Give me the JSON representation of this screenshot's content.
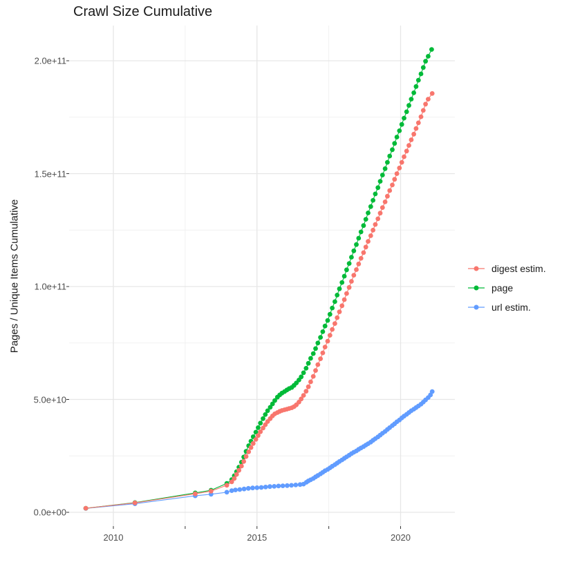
{
  "figure": {
    "background": "#ffffff"
  },
  "chart_data": {
    "type": "line",
    "title": "Crawl Size Cumulative",
    "xlabel": "",
    "ylabel": "Pages / Unique Items Cumulative",
    "value_units": "pages, stored below in billions (1e9); axis shows scientific notation",
    "x_axis": {
      "range": [
        2008.5,
        2021.9
      ],
      "major_ticks": [
        {
          "label": "2010",
          "year": 2010
        },
        {
          "label": "2015",
          "year": 2015
        },
        {
          "label": "2020",
          "year": 2020
        }
      ],
      "minor_years": [
        2012.5,
        2017.5
      ]
    },
    "y_axis": {
      "range_billions": [
        -6,
        215
      ],
      "major_ticks": [
        {
          "label": "0.0e+00",
          "value": 0
        },
        {
          "label": "5.0e+10",
          "value": 50
        },
        {
          "label": "1.0e+11",
          "value": 100
        },
        {
          "label": "1.5e+11",
          "value": 150
        },
        {
          "label": "2.0e+11",
          "value": 200
        }
      ],
      "minor_values": [
        25,
        75,
        125,
        175
      ]
    },
    "grid": "major+minor, light gray on white",
    "legend_position": "right",
    "draw_order": [
      "url estim.",
      "page",
      "digest estim."
    ],
    "series": [
      {
        "name": "digest estim.",
        "color": "#F8766D",
        "points": [
          [
            2009.04,
            1.8
          ],
          [
            2010.75,
            4.2
          ],
          [
            2012.85,
            8.2
          ],
          [
            2013.4,
            9.4
          ],
          [
            2013.95,
            12
          ],
          [
            2014.12,
            13.5
          ],
          [
            2014.21,
            15
          ],
          [
            2014.29,
            16.8
          ],
          [
            2014.37,
            18.6
          ],
          [
            2014.46,
            20.5
          ],
          [
            2014.54,
            22.5
          ],
          [
            2014.62,
            24.7
          ],
          [
            2014.71,
            26.8
          ],
          [
            2014.79,
            28.7
          ],
          [
            2014.87,
            30.5
          ],
          [
            2014.96,
            32.3
          ],
          [
            2015.04,
            34
          ],
          [
            2015.12,
            35.7
          ],
          [
            2015.21,
            37.3
          ],
          [
            2015.29,
            38.8
          ],
          [
            2015.37,
            40.2
          ],
          [
            2015.46,
            41.5
          ],
          [
            2015.54,
            42.7
          ],
          [
            2015.62,
            43.6
          ],
          [
            2015.71,
            44.2
          ],
          [
            2015.79,
            44.7
          ],
          [
            2015.87,
            45.1
          ],
          [
            2015.96,
            45.4
          ],
          [
            2016.04,
            45.7
          ],
          [
            2016.12,
            46
          ],
          [
            2016.21,
            46.3
          ],
          [
            2016.29,
            46.8
          ],
          [
            2016.37,
            47.6
          ],
          [
            2016.46,
            48.8
          ],
          [
            2016.54,
            50.2
          ],
          [
            2016.62,
            51.8
          ],
          [
            2016.71,
            53.6
          ],
          [
            2016.79,
            55.6
          ],
          [
            2016.87,
            57.8
          ],
          [
            2016.96,
            60.2
          ],
          [
            2017.04,
            62.8
          ],
          [
            2017.12,
            65.4
          ],
          [
            2017.21,
            68
          ],
          [
            2017.29,
            70.6
          ],
          [
            2017.37,
            73.2
          ],
          [
            2017.46,
            75.8
          ],
          [
            2017.54,
            78.4
          ],
          [
            2017.62,
            81
          ],
          [
            2017.71,
            83.6
          ],
          [
            2017.79,
            86.2
          ],
          [
            2017.87,
            88.8
          ],
          [
            2017.96,
            91.5
          ],
          [
            2018.04,
            94.2
          ],
          [
            2018.12,
            96.9
          ],
          [
            2018.21,
            99.6
          ],
          [
            2018.29,
            102.3
          ],
          [
            2018.37,
            105
          ],
          [
            2018.46,
            107.5
          ],
          [
            2018.54,
            110
          ],
          [
            2018.62,
            112.5
          ],
          [
            2018.71,
            115
          ],
          [
            2018.79,
            117.5
          ],
          [
            2018.87,
            120
          ],
          [
            2018.96,
            122.5
          ],
          [
            2019.04,
            125
          ],
          [
            2019.12,
            127.5
          ],
          [
            2019.21,
            130
          ],
          [
            2019.29,
            132.5
          ],
          [
            2019.37,
            135
          ],
          [
            2019.46,
            137.5
          ],
          [
            2019.54,
            140
          ],
          [
            2019.62,
            142.5
          ],
          [
            2019.71,
            145
          ],
          [
            2019.79,
            147.5
          ],
          [
            2019.87,
            150
          ],
          [
            2019.96,
            152.5
          ],
          [
            2020.04,
            155
          ],
          [
            2020.12,
            157.5
          ],
          [
            2020.21,
            160
          ],
          [
            2020.29,
            162.5
          ],
          [
            2020.37,
            165
          ],
          [
            2020.46,
            167.5
          ],
          [
            2020.54,
            170
          ],
          [
            2020.62,
            172.5
          ],
          [
            2020.71,
            175.2
          ],
          [
            2020.79,
            178
          ],
          [
            2020.87,
            180.8
          ],
          [
            2020.96,
            183
          ],
          [
            2021.1,
            185.5
          ]
        ]
      },
      {
        "name": "page",
        "color": "#00BA38",
        "points": [
          [
            2009.04,
            1.8
          ],
          [
            2010.75,
            4.3
          ],
          [
            2012.85,
            8.6
          ],
          [
            2013.4,
            9.8
          ],
          [
            2013.95,
            12.8
          ],
          [
            2014.12,
            14.5
          ],
          [
            2014.21,
            16.2
          ],
          [
            2014.29,
            18
          ],
          [
            2014.37,
            20
          ],
          [
            2014.46,
            22.2
          ],
          [
            2014.54,
            24.5
          ],
          [
            2014.62,
            27
          ],
          [
            2014.71,
            29.5
          ],
          [
            2014.79,
            31.5
          ],
          [
            2014.87,
            33.5
          ],
          [
            2014.96,
            35.5
          ],
          [
            2015.04,
            37.5
          ],
          [
            2015.12,
            39.5
          ],
          [
            2015.21,
            41.5
          ],
          [
            2015.29,
            43.3
          ],
          [
            2015.37,
            45
          ],
          [
            2015.46,
            46.5
          ],
          [
            2015.54,
            48
          ],
          [
            2015.62,
            49.5
          ],
          [
            2015.71,
            51
          ],
          [
            2015.79,
            52
          ],
          [
            2015.87,
            52.8
          ],
          [
            2015.96,
            53.5
          ],
          [
            2016.04,
            54.2
          ],
          [
            2016.12,
            54.8
          ],
          [
            2016.21,
            55.3
          ],
          [
            2016.29,
            56.2
          ],
          [
            2016.37,
            57.3
          ],
          [
            2016.46,
            58.6
          ],
          [
            2016.54,
            60
          ],
          [
            2016.62,
            61.8
          ],
          [
            2016.71,
            63.8
          ],
          [
            2016.79,
            66
          ],
          [
            2016.87,
            68.2
          ],
          [
            2016.96,
            70.3
          ],
          [
            2017.04,
            72.5
          ],
          [
            2017.12,
            75
          ],
          [
            2017.21,
            77.5
          ],
          [
            2017.29,
            80
          ],
          [
            2017.37,
            82.5
          ],
          [
            2017.46,
            85
          ],
          [
            2017.54,
            87.7
          ],
          [
            2017.62,
            90.5
          ],
          [
            2017.71,
            93.3
          ],
          [
            2017.79,
            96.2
          ],
          [
            2017.87,
            99
          ],
          [
            2017.96,
            101.8
          ],
          [
            2018.04,
            104.6
          ],
          [
            2018.12,
            107.4
          ],
          [
            2018.21,
            110.2
          ],
          [
            2018.29,
            113
          ],
          [
            2018.37,
            115.8
          ],
          [
            2018.46,
            118.6
          ],
          [
            2018.54,
            121.4
          ],
          [
            2018.62,
            124.2
          ],
          [
            2018.71,
            127
          ],
          [
            2018.79,
            129.8
          ],
          [
            2018.87,
            132.6
          ],
          [
            2018.96,
            135.4
          ],
          [
            2019.04,
            138.2
          ],
          [
            2019.12,
            141
          ],
          [
            2019.21,
            143.8
          ],
          [
            2019.29,
            146.6
          ],
          [
            2019.37,
            149.4
          ],
          [
            2019.46,
            152.2
          ],
          [
            2019.54,
            155
          ],
          [
            2019.62,
            157.8
          ],
          [
            2019.71,
            160.6
          ],
          [
            2019.79,
            163.4
          ],
          [
            2019.87,
            166.2
          ],
          [
            2019.96,
            169
          ],
          [
            2020.04,
            171.8
          ],
          [
            2020.12,
            174.6
          ],
          [
            2020.21,
            177.4
          ],
          [
            2020.29,
            180.2
          ],
          [
            2020.37,
            183
          ],
          [
            2020.46,
            185.8
          ],
          [
            2020.54,
            188.6
          ],
          [
            2020.62,
            191.4
          ],
          [
            2020.71,
            194.2
          ],
          [
            2020.79,
            197
          ],
          [
            2020.87,
            199.8
          ],
          [
            2020.96,
            202
          ],
          [
            2021.08,
            205
          ]
        ]
      },
      {
        "name": "url estim.",
        "color": "#619CFF",
        "points": [
          [
            2009.04,
            1.7
          ],
          [
            2010.75,
            3.8
          ],
          [
            2012.85,
            7.3
          ],
          [
            2013.4,
            8
          ],
          [
            2013.95,
            8.9
          ],
          [
            2014.12,
            9.6
          ],
          [
            2014.25,
            9.9
          ],
          [
            2014.4,
            10.1
          ],
          [
            2014.55,
            10.35
          ],
          [
            2014.7,
            10.6
          ],
          [
            2014.85,
            10.8
          ],
          [
            2015,
            10.9
          ],
          [
            2015.15,
            11
          ],
          [
            2015.3,
            11.2
          ],
          [
            2015.45,
            11.4
          ],
          [
            2015.6,
            11.5
          ],
          [
            2015.75,
            11.65
          ],
          [
            2015.9,
            11.75
          ],
          [
            2016.05,
            11.85
          ],
          [
            2016.2,
            11.95
          ],
          [
            2016.35,
            12.1
          ],
          [
            2016.5,
            12.3
          ],
          [
            2016.62,
            12.5
          ],
          [
            2016.72,
            13.3
          ],
          [
            2016.79,
            13.9
          ],
          [
            2016.87,
            14.4
          ],
          [
            2016.96,
            15
          ],
          [
            2017.04,
            15.7
          ],
          [
            2017.12,
            16.3
          ],
          [
            2017.21,
            17
          ],
          [
            2017.29,
            17.7
          ],
          [
            2017.37,
            18.4
          ],
          [
            2017.46,
            19
          ],
          [
            2017.54,
            19.7
          ],
          [
            2017.62,
            20.4
          ],
          [
            2017.71,
            21.1
          ],
          [
            2017.79,
            21.8
          ],
          [
            2017.87,
            22.5
          ],
          [
            2017.96,
            23.2
          ],
          [
            2018.04,
            23.9
          ],
          [
            2018.12,
            24.6
          ],
          [
            2018.21,
            25.3
          ],
          [
            2018.29,
            26
          ],
          [
            2018.37,
            26.6
          ],
          [
            2018.46,
            27.2
          ],
          [
            2018.54,
            27.9
          ],
          [
            2018.62,
            28.5
          ],
          [
            2018.71,
            29.1
          ],
          [
            2018.79,
            29.8
          ],
          [
            2018.87,
            30.4
          ],
          [
            2018.96,
            31.1
          ],
          [
            2019.04,
            31.9
          ],
          [
            2019.12,
            32.6
          ],
          [
            2019.21,
            33.4
          ],
          [
            2019.29,
            34.2
          ],
          [
            2019.37,
            35
          ],
          [
            2019.46,
            35.8
          ],
          [
            2019.54,
            36.7
          ],
          [
            2019.62,
            37.5
          ],
          [
            2019.71,
            38.4
          ],
          [
            2019.79,
            39.2
          ],
          [
            2019.87,
            40.1
          ],
          [
            2019.96,
            40.9
          ],
          [
            2020.04,
            41.8
          ],
          [
            2020.12,
            42.6
          ],
          [
            2020.21,
            43.4
          ],
          [
            2020.29,
            44.2
          ],
          [
            2020.37,
            45
          ],
          [
            2020.46,
            45.7
          ],
          [
            2020.54,
            46.4
          ],
          [
            2020.62,
            47.1
          ],
          [
            2020.71,
            47.9
          ],
          [
            2020.79,
            48.8
          ],
          [
            2020.87,
            49.8
          ],
          [
            2020.96,
            50.8
          ],
          [
            2021.04,
            52
          ],
          [
            2021.1,
            53.5
          ]
        ]
      }
    ]
  },
  "legend": {
    "items": [
      {
        "label": "digest estim.",
        "color": "#F8766D"
      },
      {
        "label": "page",
        "color": "#00BA38"
      },
      {
        "label": "url estim.",
        "color": "#619CFF"
      }
    ]
  },
  "colors": {
    "grid_major": "#e6e6e6",
    "grid_minor": "#f1f1f1",
    "tick": "#333333",
    "tick_text": "#4d4d4d",
    "text": "#1a1a1a"
  }
}
